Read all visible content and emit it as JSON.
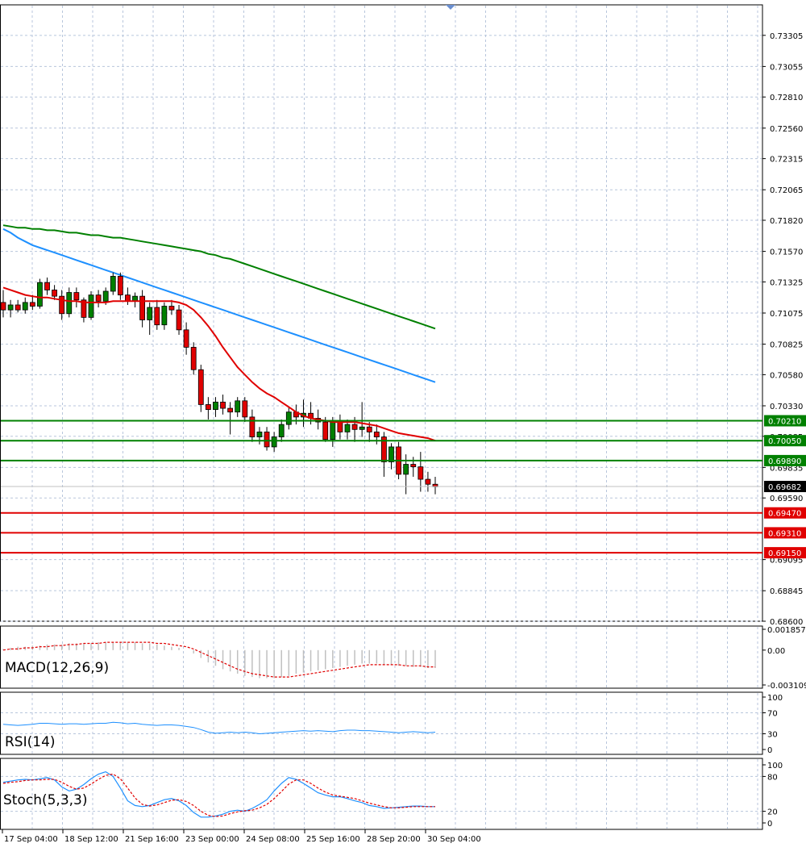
{
  "chart_data": {
    "type": "candlestick",
    "instrument_panel": {
      "price_ticks": [
        "0.73305",
        "0.73055",
        "0.72810",
        "0.72560",
        "0.72315",
        "0.72065",
        "0.71820",
        "0.71570",
        "0.71325",
        "0.71075",
        "0.70825",
        "0.70580",
        "0.70330",
        "0.70085",
        "0.69835",
        "0.69590",
        "0.69095",
        "0.68845",
        "0.68600"
      ],
      "ylim": [
        0.686,
        0.7355
      ],
      "current_price": "0.69682",
      "resistance_levels": [
        "0.70210",
        "0.70050",
        "0.69890"
      ],
      "support_levels": [
        "0.69470",
        "0.69310",
        "0.69150"
      ],
      "level_colors": {
        "resistance": "#008000",
        "support": "#e00000",
        "current": "#000000"
      },
      "ma_colors": {
        "fast": "#e00000",
        "mid": "#1e90ff",
        "slow": "#008000"
      },
      "candles": [
        {
          "o": 0.7116,
          "h": 0.7126,
          "l": 0.7104,
          "c": 0.711
        },
        {
          "o": 0.711,
          "h": 0.7118,
          "l": 0.7104,
          "c": 0.7114
        },
        {
          "o": 0.7114,
          "h": 0.7118,
          "l": 0.7108,
          "c": 0.711
        },
        {
          "o": 0.711,
          "h": 0.712,
          "l": 0.7107,
          "c": 0.7116
        },
        {
          "o": 0.7116,
          "h": 0.7122,
          "l": 0.711,
          "c": 0.7113
        },
        {
          "o": 0.7113,
          "h": 0.7135,
          "l": 0.7111,
          "c": 0.7132
        },
        {
          "o": 0.7132,
          "h": 0.7136,
          "l": 0.7122,
          "c": 0.7126
        },
        {
          "o": 0.7126,
          "h": 0.713,
          "l": 0.7118,
          "c": 0.7121
        },
        {
          "o": 0.7121,
          "h": 0.7126,
          "l": 0.7102,
          "c": 0.7107
        },
        {
          "o": 0.7107,
          "h": 0.7128,
          "l": 0.7104,
          "c": 0.7124
        },
        {
          "o": 0.7124,
          "h": 0.7128,
          "l": 0.7112,
          "c": 0.7118
        },
        {
          "o": 0.7118,
          "h": 0.712,
          "l": 0.71,
          "c": 0.7104
        },
        {
          "o": 0.7104,
          "h": 0.7125,
          "l": 0.7102,
          "c": 0.7122
        },
        {
          "o": 0.7122,
          "h": 0.7126,
          "l": 0.7112,
          "c": 0.7117
        },
        {
          "o": 0.7117,
          "h": 0.7128,
          "l": 0.7114,
          "c": 0.7125
        },
        {
          "o": 0.7125,
          "h": 0.714,
          "l": 0.7122,
          "c": 0.7137
        },
        {
          "o": 0.7137,
          "h": 0.714,
          "l": 0.7118,
          "c": 0.7122
        },
        {
          "o": 0.7122,
          "h": 0.7128,
          "l": 0.7114,
          "c": 0.7117
        },
        {
          "o": 0.7117,
          "h": 0.7124,
          "l": 0.7112,
          "c": 0.7121
        },
        {
          "o": 0.7121,
          "h": 0.7126,
          "l": 0.7096,
          "c": 0.7102
        },
        {
          "o": 0.7102,
          "h": 0.7116,
          "l": 0.709,
          "c": 0.7112
        },
        {
          "o": 0.7112,
          "h": 0.7118,
          "l": 0.7094,
          "c": 0.7098
        },
        {
          "o": 0.7098,
          "h": 0.7116,
          "l": 0.7094,
          "c": 0.7113
        },
        {
          "o": 0.7113,
          "h": 0.7118,
          "l": 0.7106,
          "c": 0.711
        },
        {
          "o": 0.711,
          "h": 0.7114,
          "l": 0.709,
          "c": 0.7094
        },
        {
          "o": 0.7094,
          "h": 0.71,
          "l": 0.7074,
          "c": 0.708
        },
        {
          "o": 0.708,
          "h": 0.7084,
          "l": 0.7058,
          "c": 0.7062
        },
        {
          "o": 0.7062,
          "h": 0.7066,
          "l": 0.7028,
          "c": 0.7034
        },
        {
          "o": 0.7034,
          "h": 0.704,
          "l": 0.7022,
          "c": 0.703
        },
        {
          "o": 0.703,
          "h": 0.704,
          "l": 0.7024,
          "c": 0.7036
        },
        {
          "o": 0.7036,
          "h": 0.7042,
          "l": 0.7026,
          "c": 0.7031
        },
        {
          "o": 0.7031,
          "h": 0.7036,
          "l": 0.701,
          "c": 0.7028
        },
        {
          "o": 0.7028,
          "h": 0.704,
          "l": 0.7024,
          "c": 0.7037
        },
        {
          "o": 0.7037,
          "h": 0.704,
          "l": 0.702,
          "c": 0.7024
        },
        {
          "o": 0.7024,
          "h": 0.703,
          "l": 0.7004,
          "c": 0.7008
        },
        {
          "o": 0.7008,
          "h": 0.7016,
          "l": 0.7002,
          "c": 0.7012
        },
        {
          "o": 0.7012,
          "h": 0.7016,
          "l": 0.6997,
          "c": 0.7
        },
        {
          "o": 0.7,
          "h": 0.7012,
          "l": 0.6996,
          "c": 0.7008
        },
        {
          "o": 0.7008,
          "h": 0.7022,
          "l": 0.7004,
          "c": 0.7018
        },
        {
          "o": 0.7018,
          "h": 0.7032,
          "l": 0.7014,
          "c": 0.7028
        },
        {
          "o": 0.7028,
          "h": 0.7034,
          "l": 0.7018,
          "c": 0.7024
        },
        {
          "o": 0.7024,
          "h": 0.7038,
          "l": 0.7016,
          "c": 0.7027
        },
        {
          "o": 0.7027,
          "h": 0.7036,
          "l": 0.7018,
          "c": 0.7023
        },
        {
          "o": 0.7023,
          "h": 0.703,
          "l": 0.7014,
          "c": 0.702
        },
        {
          "o": 0.702,
          "h": 0.7024,
          "l": 0.7004,
          "c": 0.7006
        },
        {
          "o": 0.7006,
          "h": 0.7024,
          "l": 0.7,
          "c": 0.702
        },
        {
          "o": 0.702,
          "h": 0.7026,
          "l": 0.7006,
          "c": 0.7012
        },
        {
          "o": 0.7012,
          "h": 0.7022,
          "l": 0.7006,
          "c": 0.7018
        },
        {
          "o": 0.7018,
          "h": 0.7024,
          "l": 0.7004,
          "c": 0.7014
        },
        {
          "o": 0.7014,
          "h": 0.7036,
          "l": 0.7008,
          "c": 0.7016
        },
        {
          "o": 0.7016,
          "h": 0.702,
          "l": 0.7004,
          "c": 0.7012
        },
        {
          "o": 0.7012,
          "h": 0.7018,
          "l": 0.7002,
          "c": 0.7008
        },
        {
          "o": 0.7008,
          "h": 0.7012,
          "l": 0.6976,
          "c": 0.6988
        },
        {
          "o": 0.6988,
          "h": 0.7003,
          "l": 0.6982,
          "c": 0.7
        },
        {
          "o": 0.7,
          "h": 0.7004,
          "l": 0.6974,
          "c": 0.6978
        },
        {
          "o": 0.6978,
          "h": 0.6994,
          "l": 0.6962,
          "c": 0.6986
        },
        {
          "o": 0.6986,
          "h": 0.6992,
          "l": 0.6976,
          "c": 0.6984
        },
        {
          "o": 0.6984,
          "h": 0.6996,
          "l": 0.6964,
          "c": 0.6974
        },
        {
          "o": 0.6974,
          "h": 0.698,
          "l": 0.6964,
          "c": 0.697
        },
        {
          "o": 0.697,
          "h": 0.6976,
          "l": 0.6962,
          "c": 0.6968
        }
      ],
      "ma_fast": [
        0.7128,
        0.7126,
        0.7124,
        0.7122,
        0.7121,
        0.712,
        0.712,
        0.7119,
        0.7118,
        0.7117,
        0.7117,
        0.7116,
        0.7116,
        0.7116,
        0.7116,
        0.7117,
        0.7117,
        0.7117,
        0.7117,
        0.7117,
        0.7117,
        0.7117,
        0.7117,
        0.7117,
        0.7116,
        0.7114,
        0.711,
        0.7104,
        0.7097,
        0.7089,
        0.708,
        0.7072,
        0.7064,
        0.7058,
        0.7052,
        0.7047,
        0.7043,
        0.704,
        0.7036,
        0.7032,
        0.7028,
        0.7025,
        0.7023,
        0.7022,
        0.7021,
        0.702,
        0.702,
        0.702,
        0.702,
        0.7019,
        0.7018,
        0.7017,
        0.7015,
        0.7013,
        0.7011,
        0.701,
        0.7009,
        0.7008,
        0.7007,
        0.7005
      ],
      "ma_mid": [
        0.7175,
        0.7172,
        0.7168,
        0.7165,
        0.7162,
        0.716,
        0.7158,
        0.7156,
        0.7154,
        0.7152,
        0.715,
        0.7148,
        0.7146,
        0.7144,
        0.7142,
        0.714,
        0.7138,
        0.7136,
        0.7134,
        0.7132,
        0.713,
        0.7128,
        0.7126,
        0.7124,
        0.7122,
        0.712,
        0.7118,
        0.7116,
        0.7114,
        0.7112,
        0.711,
        0.7108,
        0.7106,
        0.7104,
        0.7102,
        0.71,
        0.7098,
        0.7096,
        0.7094,
        0.7092,
        0.709,
        0.7088,
        0.7086,
        0.7084,
        0.7082,
        0.708,
        0.7078,
        0.7076,
        0.7074,
        0.7072,
        0.707,
        0.7068,
        0.7066,
        0.7064,
        0.7062,
        0.706,
        0.7058,
        0.7056,
        0.7054,
        0.7052
      ],
      "ma_slow": [
        0.7178,
        0.7177,
        0.7176,
        0.7176,
        0.7175,
        0.7175,
        0.7174,
        0.7174,
        0.7173,
        0.7172,
        0.7172,
        0.7171,
        0.717,
        0.717,
        0.7169,
        0.7168,
        0.7168,
        0.7167,
        0.7166,
        0.7165,
        0.7164,
        0.7163,
        0.7162,
        0.7161,
        0.716,
        0.7159,
        0.7158,
        0.7157,
        0.7155,
        0.7154,
        0.7152,
        0.7151,
        0.7149,
        0.7147,
        0.7145,
        0.7143,
        0.7141,
        0.7139,
        0.7137,
        0.7135,
        0.7133,
        0.7131,
        0.7129,
        0.7127,
        0.7125,
        0.7123,
        0.7121,
        0.7119,
        0.7117,
        0.7115,
        0.7113,
        0.7111,
        0.7109,
        0.7107,
        0.7105,
        0.7103,
        0.7101,
        0.7099,
        0.7097,
        0.7095
      ]
    },
    "x_tick_labels": [
      "17 Sep 04:00",
      "18 Sep 12:00",
      "21 Sep 16:00",
      "23 Sep 00:00",
      "24 Sep 08:00",
      "25 Sep 16:00",
      "28 Sep 20:00",
      "30 Sep 04:00"
    ],
    "macd_panel": {
      "label": "MACD(12,26,9)",
      "ticks": [
        "0.001857",
        "0.00",
        "-0.003109"
      ],
      "ylim": [
        -0.003109,
        0.001857
      ],
      "histogram": [
        0.0001,
        0.0002,
        0.0003,
        0.0003,
        0.0004,
        0.0004,
        0.0005,
        0.0005,
        0.0005,
        0.0006,
        0.0006,
        0.0006,
        0.0006,
        0.0007,
        0.0007,
        0.0007,
        0.0007,
        0.0007,
        0.0007,
        0.0006,
        0.0006,
        0.0005,
        0.0004,
        0.0003,
        0.0002,
        0.0,
        -0.0003,
        -0.0007,
        -0.0011,
        -0.0014,
        -0.0017,
        -0.0019,
        -0.0021,
        -0.0023,
        -0.0024,
        -0.0025,
        -0.0025,
        -0.0025,
        -0.0024,
        -0.0023,
        -0.0021,
        -0.002,
        -0.0019,
        -0.0018,
        -0.0017,
        -0.0016,
        -0.0015,
        -0.0014,
        -0.0013,
        -0.0012,
        -0.0012,
        -0.0012,
        -0.0013,
        -0.0013,
        -0.0014,
        -0.0014,
        -0.0015,
        -0.0015,
        -0.0016,
        -0.0016
      ],
      "signal": [
        0.0,
        0.0001,
        0.0001,
        0.0002,
        0.0002,
        0.0003,
        0.0003,
        0.0004,
        0.0004,
        0.0005,
        0.0005,
        0.0006,
        0.0006,
        0.0006,
        0.0007,
        0.0007,
        0.0007,
        0.0007,
        0.0007,
        0.0007,
        0.0007,
        0.0006,
        0.0006,
        0.0005,
        0.0004,
        0.0003,
        0.0001,
        -0.0002,
        -0.0005,
        -0.0008,
        -0.0011,
        -0.0014,
        -0.0017,
        -0.0019,
        -0.0021,
        -0.0022,
        -0.0023,
        -0.0024,
        -0.0024,
        -0.0024,
        -0.0023,
        -0.0022,
        -0.0021,
        -0.002,
        -0.0019,
        -0.0018,
        -0.0017,
        -0.0016,
        -0.0015,
        -0.0014,
        -0.0013,
        -0.0013,
        -0.0013,
        -0.0013,
        -0.0013,
        -0.0014,
        -0.0014,
        -0.0014,
        -0.0015,
        -0.0015
      ],
      "colors": {
        "histogram": "#c0c0c0",
        "signal": "#e00000"
      }
    },
    "rsi_panel": {
      "label": "RSI(14)",
      "ticks": [
        "100",
        "70",
        "30",
        "0"
      ],
      "ylim": [
        0,
        100
      ],
      "values": [
        48,
        47,
        46,
        47,
        48,
        50,
        50,
        49,
        48,
        49,
        49,
        48,
        49,
        50,
        50,
        52,
        51,
        49,
        50,
        48,
        47,
        46,
        47,
        47,
        46,
        44,
        42,
        38,
        33,
        31,
        32,
        33,
        32,
        33,
        32,
        30,
        31,
        32,
        33,
        34,
        35,
        36,
        35,
        36,
        35,
        34,
        36,
        37,
        37,
        36,
        36,
        35,
        34,
        33,
        32,
        33,
        34,
        33,
        32,
        33
      ],
      "color": "#1e90ff"
    },
    "stoch_panel": {
      "label": "Stoch(5,3,3)",
      "ticks": [
        "100",
        "80",
        "20",
        "0"
      ],
      "ylim": [
        0,
        100
      ],
      "main": [
        70,
        72,
        74,
        75,
        74,
        76,
        78,
        74,
        62,
        55,
        58,
        66,
        76,
        84,
        88,
        80,
        60,
        38,
        30,
        28,
        30,
        35,
        40,
        42,
        38,
        30,
        18,
        10,
        10,
        12,
        15,
        20,
        22,
        20,
        25,
        32,
        40,
        55,
        68,
        78,
        75,
        68,
        60,
        52,
        48,
        45,
        45,
        42,
        38,
        35,
        30,
        28,
        25,
        26,
        27,
        28,
        29,
        29,
        28,
        28
      ],
      "signal": [
        68,
        70,
        71,
        73,
        74,
        74,
        75,
        75,
        70,
        63,
        58,
        60,
        67,
        75,
        82,
        84,
        76,
        60,
        43,
        32,
        29,
        31,
        35,
        39,
        40,
        37,
        30,
        20,
        13,
        11,
        12,
        16,
        19,
        21,
        22,
        26,
        32,
        42,
        54,
        67,
        74,
        74,
        68,
        60,
        53,
        48,
        46,
        44,
        42,
        38,
        34,
        31,
        28,
        26,
        26,
        27,
        28,
        28,
        28,
        28
      ],
      "colors": {
        "main": "#1e90ff",
        "signal": "#e00000"
      }
    }
  }
}
